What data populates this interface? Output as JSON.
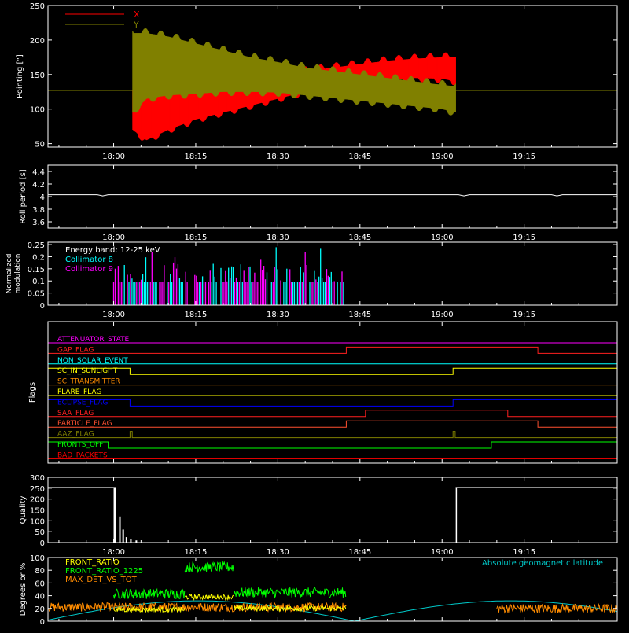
{
  "colors": {
    "axis": "#ffffff",
    "x": "#ff0000",
    "y": "#808000",
    "reference": "#808000",
    "roll": "#ffffff",
    "c8": "#00ffff",
    "c9": "#ff00ff",
    "quality": "#ffffff",
    "front_ratio": "#ffff00",
    "front_ratio_1225": "#00ff00",
    "max_det": "#ff8c00",
    "geomag": "#00c8c8",
    "mod_label": "#ffffff"
  },
  "time_ticks": [
    "18:00",
    "18:15",
    "18:30",
    "18:45",
    "19:00",
    "19:15"
  ],
  "time_tick_minutes": [
    60,
    75,
    90,
    105,
    120,
    135
  ],
  "time_range": [
    48,
    152
  ],
  "chart_data": [
    {
      "id": "pointing",
      "type": "area",
      "ylabel": "Pointing [\"]",
      "ylim": [
        45,
        250
      ],
      "yticks": [
        50,
        100,
        150,
        200,
        250
      ],
      "legend": "top-left",
      "data_start": 63.5,
      "data_end": 122.5,
      "reference_value": 127,
      "series": [
        {
          "name": "X",
          "color": "#ff0000",
          "t": [
            63.5,
            66,
            70,
            75,
            80,
            85,
            90,
            95,
            100,
            105,
            110,
            115,
            120,
            122.5
          ],
          "low": [
            70,
            55,
            70,
            85,
            95,
            105,
            115,
            125,
            133,
            140,
            143,
            145,
            144,
            140
          ],
          "high": [
            120,
            125,
            130,
            135,
            140,
            145,
            150,
            155,
            160,
            165,
            170,
            173,
            175,
            175
          ]
        },
        {
          "name": "Y",
          "color": "#808000",
          "t": [
            63.5,
            66,
            70,
            75,
            80,
            85,
            90,
            95,
            100,
            105,
            110,
            115,
            120,
            122.5
          ],
          "low": [
            95,
            115,
            120,
            122,
            125,
            125,
            124,
            120,
            116,
            112,
            108,
            104,
            100,
            95
          ],
          "high": [
            210,
            210,
            205,
            195,
            185,
            175,
            168,
            160,
            155,
            150,
            145,
            140,
            135,
            133
          ]
        }
      ]
    },
    {
      "id": "roll",
      "type": "line",
      "ylabel": "Roll period [s]",
      "ylim": [
        3.5,
        4.5
      ],
      "yticks": [
        3.6,
        3.8,
        4.0,
        4.2,
        4.4
      ],
      "value": 4.03
    },
    {
      "id": "modulation",
      "type": "bar",
      "ylabel": [
        "Normalized",
        "modulation"
      ],
      "ylim": [
        0,
        0.26
      ],
      "yticks": [
        0.0,
        0.05,
        0.1,
        0.15,
        0.2,
        0.25
      ],
      "data_start": 60,
      "data_end": 102.5,
      "base_level": 0.096,
      "series": [
        {
          "name": "Collimator 8",
          "color": "#00ffff"
        },
        {
          "name": "Collimator 9",
          "color": "#ff00ff"
        }
      ],
      "annotations": [
        "Energy band: 12-25 keV",
        "Collimator 8",
        "Collimator 9"
      ]
    },
    {
      "id": "flags",
      "type": "line",
      "ylabel": "Flags",
      "flags": [
        {
          "name": "ATTENUATOR_STATE",
          "color": "#ff00ff",
          "steps": []
        },
        {
          "name": "GAP_FLAG",
          "color": "#ff2020",
          "steps": [
            [
              102.5,
              137.5
            ]
          ]
        },
        {
          "name": "NON_SOLAR_EVENT",
          "color": "#00ffff",
          "steps": []
        },
        {
          "name": "SC_IN_SUNLIGHT",
          "color": "#ffff00",
          "steps": [
            [
              63,
              122
            ]
          ],
          "inverted": true
        },
        {
          "name": "SC_TRANSMITTER",
          "color": "#ff8c00",
          "steps": []
        },
        {
          "name": "FLARE_FLAG",
          "color": "#ffff00",
          "steps": []
        },
        {
          "name": "ECLIPSE_FLAG",
          "color": "#0000ff",
          "steps": [
            [
              48,
              63
            ],
            [
              122,
              152
            ]
          ]
        },
        {
          "name": "SAA_FLAG",
          "color": "#ff2020",
          "steps": [
            [
              106,
              132
            ]
          ]
        },
        {
          "name": "PARTICLE_FLAG",
          "color": "#ff5030",
          "steps": [
            [
              102.5,
              137.5
            ]
          ]
        },
        {
          "name": "AAZ_FLAG",
          "color": "#808000",
          "steps": [
            [
              63,
              63.4
            ],
            [
              122,
              122.4
            ]
          ]
        },
        {
          "name": "FRONTS_OFF",
          "color": "#00ff00",
          "steps": [
            [
              48,
              59
            ],
            [
              129,
              152
            ]
          ]
        },
        {
          "name": "BAD_PACKETS",
          "color": "#ff0000",
          "steps": []
        }
      ]
    },
    {
      "id": "quality",
      "type": "bar",
      "ylabel": "Quality",
      "ylim": [
        0,
        300
      ],
      "yticks": [
        0,
        50,
        100,
        150,
        200,
        250,
        300
      ],
      "segments": [
        [
          48,
          60,
          255
        ],
        [
          122.5,
          152,
          255
        ]
      ]
    },
    {
      "id": "front",
      "type": "line",
      "ylabel": "Degrees or %",
      "ylim": [
        0,
        100
      ],
      "yticks": [
        0,
        20,
        40,
        60,
        80,
        100
      ],
      "legend": "top-left",
      "annotations": [
        "Absolute geomagnetic latitude"
      ],
      "series": [
        {
          "name": "FRONT_RATIO",
          "color": "#ffff00",
          "levels": [
            [
              60,
              73,
              18
            ],
            [
              73,
              82,
              38
            ],
            [
              82,
              102.5,
              20
            ]
          ]
        },
        {
          "name": "FRONT_RATIO_1225",
          "color": "#00ff00",
          "levels": [
            [
              60,
              73,
              43
            ],
            [
              73,
              82,
              85
            ],
            [
              82,
              102.5,
              45
            ]
          ]
        },
        {
          "name": "MAX_DET_VS_TOT",
          "color": "#ff8c00",
          "levels": [
            [
              48,
              102.5,
              22
            ],
            [
              130,
              152,
              20
            ]
          ]
        }
      ],
      "geomag": {
        "t": [
          48,
          60,
          75,
          90,
          105,
          120,
          135,
          150,
          152
        ],
        "v": [
          0,
          5,
          2,
          2,
          10,
          30,
          20,
          5,
          5
        ]
      }
    }
  ]
}
